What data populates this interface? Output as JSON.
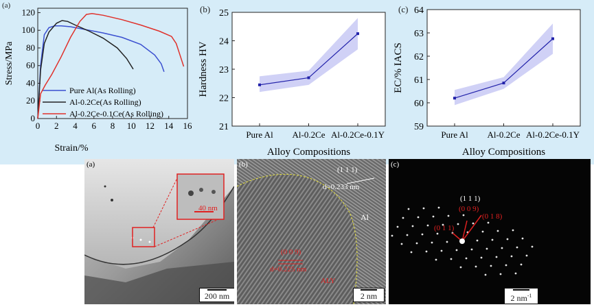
{
  "panels_top": [
    {
      "label": "(a)"
    },
    {
      "label": "(b)"
    },
    {
      "label": "(c)"
    }
  ],
  "chart_data": [
    {
      "type": "line",
      "ylabel": "Stress/MPa",
      "xlabel": "Strain/%",
      "xlim": [
        0,
        16
      ],
      "ylim": [
        0,
        125
      ],
      "xticks": [
        0,
        2,
        4,
        6,
        8,
        10,
        12,
        14,
        16
      ],
      "yticks": [
        0,
        20,
        40,
        60,
        80,
        100,
        120
      ],
      "legend_position": "bottom-left",
      "series": [
        {
          "name": "Pure Al(As Rolling)",
          "color": "#3a4fd0",
          "x": [
            0,
            0.3,
            0.7,
            1.2,
            1.8,
            2.5,
            3.5,
            5,
            7,
            9,
            11,
            12.5,
            13.2,
            13.5
          ],
          "y": [
            0,
            60,
            95,
            103,
            105,
            105,
            104,
            101,
            97,
            92,
            84,
            72,
            62,
            53
          ]
        },
        {
          "name": "Al-0.2Ce(As Rolling)",
          "color": "#222222",
          "x": [
            0,
            0.3,
            0.7,
            1.2,
            2,
            2.6,
            3.2,
            4,
            5.5,
            7,
            8.5,
            9.5,
            10.2
          ],
          "y": [
            0,
            55,
            85,
            98,
            108,
            111,
            110,
            106,
            99,
            91,
            80,
            68,
            56
          ]
        },
        {
          "name": "Al-0.2Ce-0.1Ce(As Rolling)",
          "color": "#e0302a",
          "x": [
            0,
            0.3,
            0.8,
            1.5,
            2.5,
            3.5,
            4.5,
            5.2,
            5.8,
            7,
            9,
            11,
            13,
            14.3,
            14.8,
            15.2,
            15.6
          ],
          "y": [
            0,
            28,
            38,
            50,
            70,
            92,
            110,
            118,
            119,
            117,
            112,
            106,
            99,
            93,
            85,
            72,
            59
          ]
        }
      ]
    },
    {
      "type": "line",
      "ylabel": "Hardness HV",
      "xlabel": "Alloy Compositions",
      "categories": [
        "Pure Al",
        "Al-0.2Ce",
        "Al-0.2Ce-0.1Y"
      ],
      "values": [
        22.45,
        22.7,
        24.25
      ],
      "band_low": [
        22.2,
        22.45,
        23.7
      ],
      "band_high": [
        22.75,
        22.95,
        24.8
      ],
      "ylim": [
        21,
        25
      ],
      "yticks": [
        21,
        22,
        23,
        24,
        25
      ],
      "color": "#2222aa",
      "band_color": "#c8c9f5"
    },
    {
      "type": "line",
      "ylabel": "EC/% IACS",
      "xlabel": "Alloy Compositions",
      "categories": [
        "Pure Al",
        "Al-0.2Ce",
        "Al-0.2Ce-0.1Y"
      ],
      "values": [
        60.2,
        60.85,
        62.75
      ],
      "band_low": [
        59.9,
        60.6,
        62.1
      ],
      "band_high": [
        60.55,
        61.1,
        63.4
      ],
      "ylim": [
        59,
        64
      ],
      "yticks": [
        59,
        60,
        61,
        62,
        63,
        64
      ],
      "color": "#2222aa",
      "band_color": "#c8c9f5"
    }
  ],
  "panels_bottom": {
    "a": {
      "label": "(a)",
      "inset_scale": "40 nm",
      "scale": "200 nm"
    },
    "b": {
      "label": "(b)",
      "plane": "(1 1 1)",
      "d_top": "d=0.233 nm",
      "al_label": "Al",
      "plane_red": "(0 0 9)",
      "d_red": "d=0.225 nm",
      "phase_label": "ALY",
      "scale": "2 nm"
    },
    "c": {
      "label": "(c)",
      "spot_white": "(1 1 1)",
      "spot1": "(0 0 9)",
      "spot2": "(0 1 8)",
      "spot3": "(0 1 1)",
      "scale": "2 nm",
      "scale_sup": "-1"
    }
  }
}
